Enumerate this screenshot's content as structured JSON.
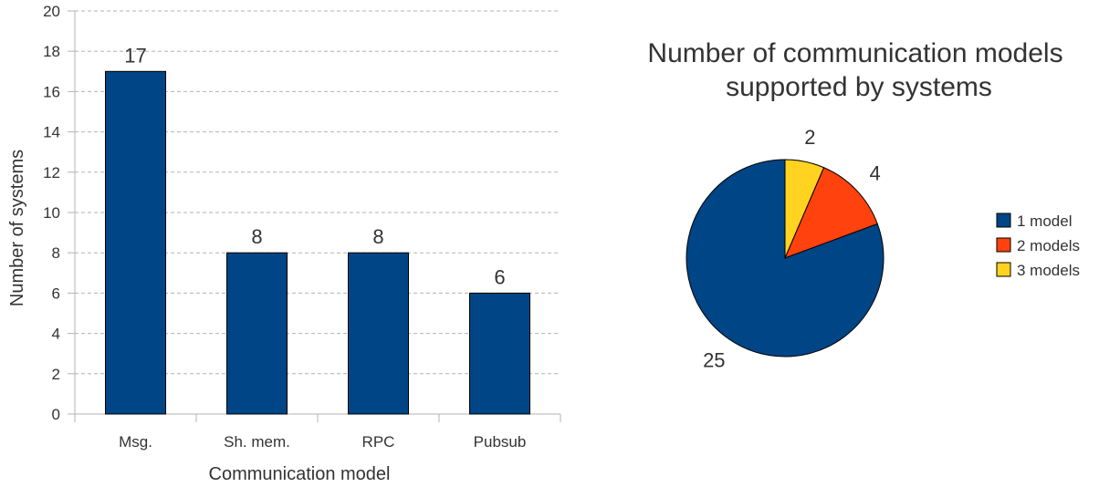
{
  "chart_data": [
    {
      "type": "bar",
      "title": "",
      "xlabel": "Communication model",
      "ylabel": "Number of systems",
      "categories": [
        "Msg.",
        "Sh. mem.",
        "RPC",
        "Pubsub"
      ],
      "values": [
        17,
        8,
        8,
        6
      ],
      "data_labels": [
        "17",
        "8",
        "8",
        "6"
      ],
      "ylim": [
        0,
        20
      ],
      "yticks": [
        "0",
        "2",
        "4",
        "6",
        "8",
        "10",
        "12",
        "14",
        "16",
        "18",
        "20"
      ],
      "grid": "horizontal dashed",
      "legend": "none",
      "bar_color": "#004586"
    },
    {
      "type": "pie",
      "title": "Number of communication models supported by systems",
      "title_lines": [
        "Number of communication models",
        "supported by systems"
      ],
      "categories": [
        "1 model",
        "2 models",
        "3 models"
      ],
      "values": [
        25,
        4,
        2
      ],
      "data_labels": [
        "25",
        "4",
        "2"
      ],
      "colors": [
        "#004586",
        "#ff420e",
        "#ffd320"
      ],
      "legend": "right"
    }
  ]
}
